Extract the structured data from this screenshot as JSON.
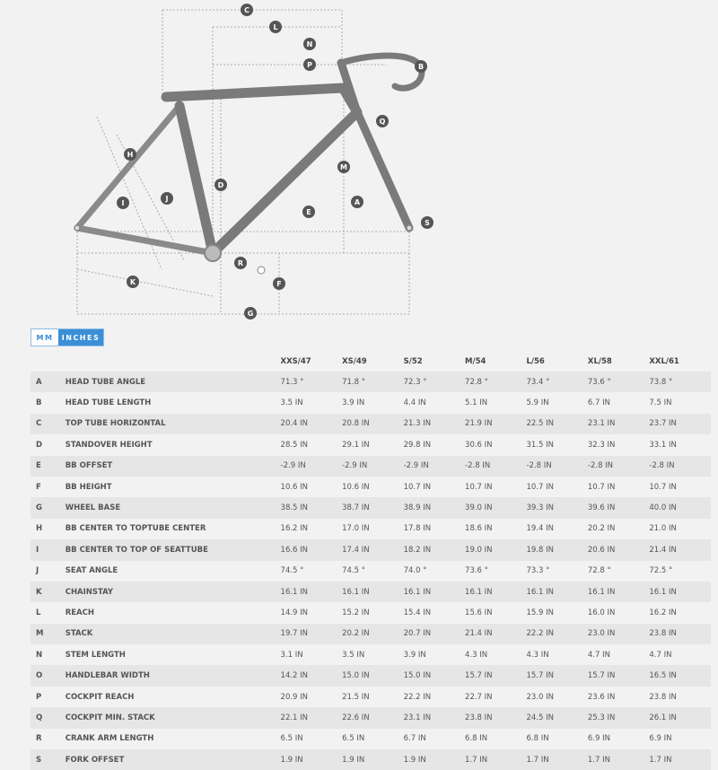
{
  "diagram": {
    "labels": [
      "A",
      "B",
      "C",
      "D",
      "E",
      "F",
      "G",
      "H",
      "I",
      "J",
      "K",
      "L",
      "M",
      "N",
      "P",
      "Q",
      "R",
      "S"
    ]
  },
  "unit_toggle": {
    "mm": "MM",
    "inches": "INCHES",
    "selected": "INCHES"
  },
  "table": {
    "sizes": [
      "XXS/47",
      "XS/49",
      "S/52",
      "M/54",
      "L/56",
      "XL/58",
      "XXL/61"
    ],
    "rows": [
      {
        "letter": "A",
        "label": "HEAD TUBE ANGLE",
        "values": [
          "71.3 °",
          "71.8 °",
          "72.3 °",
          "72.8 °",
          "73.4 °",
          "73.6 °",
          "73.8 °"
        ]
      },
      {
        "letter": "B",
        "label": "HEAD TUBE LENGTH",
        "values": [
          "3.5 IN",
          "3.9 IN",
          "4.4 IN",
          "5.1 IN",
          "5.9 IN",
          "6.7 IN",
          "7.5 IN"
        ]
      },
      {
        "letter": "C",
        "label": "TOP TUBE HORIZONTAL",
        "values": [
          "20.4 IN",
          "20.8 IN",
          "21.3 IN",
          "21.9 IN",
          "22.5 IN",
          "23.1 IN",
          "23.7 IN"
        ]
      },
      {
        "letter": "D",
        "label": "STANDOVER HEIGHT",
        "values": [
          "28.5 IN",
          "29.1 IN",
          "29.8 IN",
          "30.6 IN",
          "31.5 IN",
          "32.3 IN",
          "33.1 IN"
        ]
      },
      {
        "letter": "E",
        "label": "BB OFFSET",
        "values": [
          "-2.9 IN",
          "-2.9 IN",
          "-2.9 IN",
          "-2.8 IN",
          "-2.8 IN",
          "-2.8 IN",
          "-2.8 IN"
        ]
      },
      {
        "letter": "F",
        "label": "BB HEIGHT",
        "values": [
          "10.6 IN",
          "10.6 IN",
          "10.7 IN",
          "10.7 IN",
          "10.7 IN",
          "10.7 IN",
          "10.7 IN"
        ]
      },
      {
        "letter": "G",
        "label": "WHEEL BASE",
        "values": [
          "38.5 IN",
          "38.7 IN",
          "38.9 IN",
          "39.0 IN",
          "39.3 IN",
          "39.6 IN",
          "40.0 IN"
        ]
      },
      {
        "letter": "H",
        "label": "BB CENTER TO TOPTUBE CENTER",
        "values": [
          "16.2 IN",
          "17.0 IN",
          "17.8 IN",
          "18.6 IN",
          "19.4 IN",
          "20.2 IN",
          "21.0 IN"
        ]
      },
      {
        "letter": "I",
        "label": "BB CENTER TO TOP OF SEATTUBE",
        "values": [
          "16.6 IN",
          "17.4 IN",
          "18.2 IN",
          "19.0 IN",
          "19.8 IN",
          "20.6 IN",
          "21.4 IN"
        ]
      },
      {
        "letter": "J",
        "label": "SEAT ANGLE",
        "values": [
          "74.5 °",
          "74.5 °",
          "74.0 °",
          "73.6 °",
          "73.3 °",
          "72.8 °",
          "72.5 °"
        ]
      },
      {
        "letter": "K",
        "label": "CHAINSTAY",
        "values": [
          "16.1 IN",
          "16.1 IN",
          "16.1 IN",
          "16.1 IN",
          "16.1 IN",
          "16.1 IN",
          "16.1 IN"
        ]
      },
      {
        "letter": "L",
        "label": "REACH",
        "values": [
          "14.9 IN",
          "15.2 IN",
          "15.4 IN",
          "15.6 IN",
          "15.9 IN",
          "16.0 IN",
          "16.2 IN"
        ]
      },
      {
        "letter": "M",
        "label": "STACK",
        "values": [
          "19.7 IN",
          "20.2 IN",
          "20.7 IN",
          "21.4 IN",
          "22.2 IN",
          "23.0 IN",
          "23.8 IN"
        ]
      },
      {
        "letter": "N",
        "label": "STEM LENGTH",
        "values": [
          "3.1 IN",
          "3.5 IN",
          "3.9 IN",
          "4.3 IN",
          "4.3 IN",
          "4.7 IN",
          "4.7 IN"
        ]
      },
      {
        "letter": "O",
        "label": "HANDLEBAR WIDTH",
        "values": [
          "14.2 IN",
          "15.0 IN",
          "15.0 IN",
          "15.7 IN",
          "15.7 IN",
          "15.7 IN",
          "16.5 IN"
        ]
      },
      {
        "letter": "P",
        "label": "COCKPIT REACH",
        "values": [
          "20.9 IN",
          "21.5 IN",
          "22.2 IN",
          "22.7 IN",
          "23.0 IN",
          "23.6 IN",
          "23.8 IN"
        ]
      },
      {
        "letter": "Q",
        "label": "COCKPIT MIN. STACK",
        "values": [
          "22.1 IN",
          "22.6 IN",
          "23.1 IN",
          "23.8 IN",
          "24.5 IN",
          "25.3 IN",
          "26.1 IN"
        ]
      },
      {
        "letter": "R",
        "label": "CRANK ARM LENGTH",
        "values": [
          "6.5 IN",
          "6.5 IN",
          "6.7 IN",
          "6.8 IN",
          "6.8 IN",
          "6.9 IN",
          "6.9 IN"
        ]
      },
      {
        "letter": "S",
        "label": "FORK OFFSET",
        "values": [
          "1.9 IN",
          "1.9 IN",
          "1.9 IN",
          "1.7 IN",
          "1.7 IN",
          "1.7 IN",
          "1.7 IN"
        ]
      }
    ]
  }
}
